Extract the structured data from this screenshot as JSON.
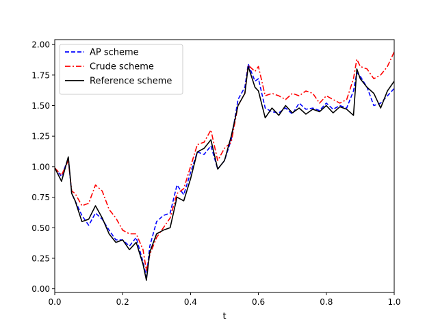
{
  "chart_data": {
    "type": "line",
    "title": "",
    "xlabel": "t",
    "ylabel": "",
    "xlim": [
      0,
      1
    ],
    "ylim": [
      -0.03,
      2.04
    ],
    "grid": false,
    "legend_placement": "top-left",
    "x_ticks": [
      {
        "value": 0.0,
        "label": "0.0"
      },
      {
        "value": 0.2,
        "label": "0.2"
      },
      {
        "value": 0.4,
        "label": "0.4"
      },
      {
        "value": 0.6,
        "label": "0.6"
      },
      {
        "value": 0.8,
        "label": "0.8"
      },
      {
        "value": 1.0,
        "label": "1.0"
      }
    ],
    "y_ticks": [
      {
        "value": 0.0,
        "label": "0.00"
      },
      {
        "value": 0.25,
        "label": "0.25"
      },
      {
        "value": 0.5,
        "label": "0.50"
      },
      {
        "value": 0.75,
        "label": "0.75"
      },
      {
        "value": 1.0,
        "label": "1.00"
      },
      {
        "value": 1.25,
        "label": "1.25"
      },
      {
        "value": 1.5,
        "label": "1.50"
      },
      {
        "value": 1.75,
        "label": "1.75"
      },
      {
        "value": 2.0,
        "label": "2.00"
      }
    ],
    "x": [
      0.0,
      0.02,
      0.04,
      0.05,
      0.06,
      0.08,
      0.1,
      0.12,
      0.14,
      0.16,
      0.18,
      0.2,
      0.22,
      0.24,
      0.26,
      0.27,
      0.28,
      0.3,
      0.32,
      0.34,
      0.36,
      0.38,
      0.4,
      0.42,
      0.44,
      0.46,
      0.48,
      0.5,
      0.52,
      0.54,
      0.56,
      0.57,
      0.59,
      0.6,
      0.62,
      0.64,
      0.66,
      0.68,
      0.7,
      0.72,
      0.74,
      0.76,
      0.78,
      0.8,
      0.82,
      0.84,
      0.86,
      0.88,
      0.89,
      0.9,
      0.92,
      0.94,
      0.96,
      0.98,
      1.0
    ],
    "series": [
      {
        "name": "AP scheme",
        "color": "#0000ff",
        "style": "dashed",
        "values": [
          0.99,
          0.92,
          1.07,
          0.78,
          0.72,
          0.6,
          0.52,
          0.62,
          0.57,
          0.48,
          0.4,
          0.4,
          0.35,
          0.42,
          0.22,
          0.1,
          0.35,
          0.55,
          0.6,
          0.62,
          0.85,
          0.77,
          0.95,
          1.12,
          1.1,
          1.17,
          0.98,
          1.05,
          1.22,
          1.55,
          1.65,
          1.84,
          1.7,
          1.72,
          1.48,
          1.45,
          1.44,
          1.48,
          1.43,
          1.52,
          1.47,
          1.48,
          1.46,
          1.52,
          1.47,
          1.5,
          1.48,
          1.62,
          1.77,
          1.74,
          1.65,
          1.5,
          1.52,
          1.58,
          1.64
        ]
      },
      {
        "name": "Crude scheme",
        "color": "#ff0000",
        "style": "dashdot",
        "values": [
          0.99,
          0.93,
          1.05,
          0.8,
          0.78,
          0.68,
          0.7,
          0.85,
          0.8,
          0.65,
          0.58,
          0.48,
          0.45,
          0.45,
          0.32,
          0.15,
          0.28,
          0.42,
          0.5,
          0.58,
          0.78,
          0.82,
          1.0,
          1.18,
          1.2,
          1.3,
          1.05,
          1.15,
          1.2,
          1.5,
          1.6,
          1.83,
          1.78,
          1.82,
          1.58,
          1.6,
          1.58,
          1.55,
          1.6,
          1.58,
          1.62,
          1.6,
          1.52,
          1.58,
          1.55,
          1.52,
          1.55,
          1.72,
          1.88,
          1.82,
          1.8,
          1.72,
          1.75,
          1.82,
          1.94
        ]
      },
      {
        "name": "Reference scheme",
        "color": "#000000",
        "style": "solid",
        "values": [
          0.99,
          0.88,
          1.08,
          0.78,
          0.72,
          0.55,
          0.57,
          0.68,
          0.58,
          0.45,
          0.38,
          0.4,
          0.32,
          0.38,
          0.2,
          0.07,
          0.3,
          0.45,
          0.48,
          0.5,
          0.75,
          0.72,
          0.9,
          1.12,
          1.15,
          1.22,
          0.98,
          1.05,
          1.25,
          1.5,
          1.6,
          1.82,
          1.65,
          1.62,
          1.4,
          1.48,
          1.42,
          1.5,
          1.44,
          1.48,
          1.43,
          1.47,
          1.45,
          1.5,
          1.44,
          1.49,
          1.47,
          1.42,
          1.8,
          1.72,
          1.65,
          1.6,
          1.48,
          1.62,
          1.7
        ]
      }
    ]
  }
}
